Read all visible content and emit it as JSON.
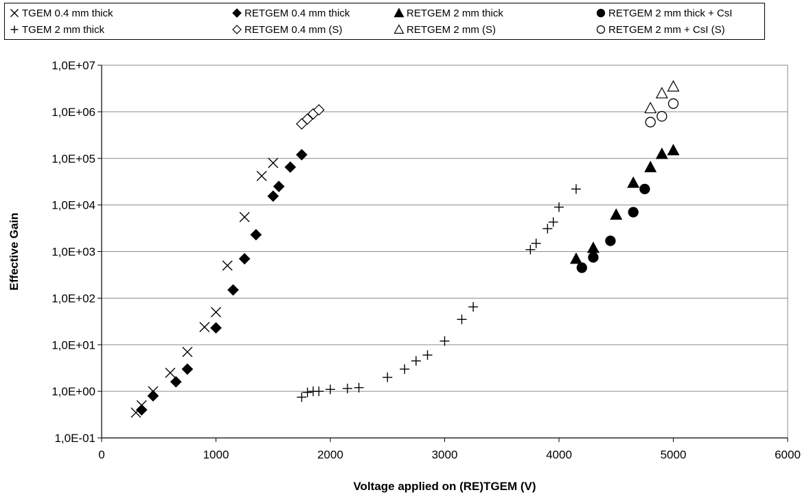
{
  "chart_data": {
    "type": "scatter",
    "title": "",
    "xlabel": "Voltage applied on (RE)TGEM (V)",
    "ylabel": "Effective Gain",
    "x_scale": "linear",
    "y_scale": "log",
    "xlim": [
      0,
      6000
    ],
    "ylim": [
      0.1,
      10000000
    ],
    "x_ticks": [
      "0",
      "1000",
      "2000",
      "3000",
      "4000",
      "5000",
      "6000"
    ],
    "y_ticks": [
      "1,0E-01",
      "1,0E+00",
      "1,0E+01",
      "1,0E+02",
      "1,0E+03",
      "1,0E+04",
      "1,0E+05",
      "1,0E+06",
      "1,0E+07"
    ],
    "grid": "horizontal major lines",
    "legend_position": "top",
    "plot_background": "#ffffff",
    "series": [
      {
        "name": "TGEM 0.4 mm thick",
        "marker": "x",
        "x": [
          300,
          350,
          450,
          600,
          750,
          900,
          1000,
          1100,
          1250,
          1400,
          1500
        ],
        "y": [
          0.35,
          0.5,
          1.0,
          2.5,
          7.0,
          24,
          50,
          500,
          5500,
          42000,
          80000
        ]
      },
      {
        "name": "TGEM 2 mm thick",
        "marker": "plus",
        "x": [
          1750,
          1800,
          1850,
          1900,
          2000,
          2150,
          2250,
          2500,
          2650,
          2750,
          2850,
          3000,
          3150,
          3250,
          3750,
          3800,
          3900,
          3950,
          4000,
          4150
        ],
        "y": [
          0.75,
          0.95,
          1.0,
          1.0,
          1.1,
          1.15,
          1.2,
          2.0,
          3.0,
          4.5,
          6.0,
          12,
          35,
          65,
          1100,
          1500,
          3100,
          4300,
          9000,
          22000
        ]
      },
      {
        "name": "RETGEM 0.4 mm thick",
        "marker": "diamond-filled",
        "x": [
          350,
          450,
          650,
          750,
          1000,
          1150,
          1250,
          1350,
          1500,
          1550,
          1650,
          1750
        ],
        "y": [
          0.4,
          0.8,
          1.6,
          3.0,
          23,
          150,
          700,
          2300,
          15500,
          25000,
          65000,
          120000
        ]
      },
      {
        "name": "RETGEM 0.4 mm (S)",
        "marker": "diamond-open",
        "x": [
          1750,
          1800,
          1850,
          1900
        ],
        "y": [
          550000,
          700000,
          900000,
          1100000
        ]
      },
      {
        "name": "RETGEM 2 mm thick",
        "marker": "triangle-filled",
        "x": [
          4150,
          4300,
          4500,
          4650,
          4800,
          4900,
          5000
        ],
        "y": [
          700,
          1200,
          6200,
          30000,
          65000,
          125000,
          150000
        ]
      },
      {
        "name": "RETGEM 2 mm (S)",
        "marker": "triangle-open",
        "x": [
          4800,
          4900,
          5000
        ],
        "y": [
          1200000,
          2500000,
          3500000
        ]
      },
      {
        "name": "RETGEM 2 mm thick + CsI",
        "marker": "circle-filled",
        "x": [
          4200,
          4300,
          4450,
          4650,
          4750
        ],
        "y": [
          450,
          750,
          1700,
          7000,
          22000
        ]
      },
      {
        "name": "RETGEM 2 mm + CsI (S)",
        "marker": "circle-open",
        "x": [
          4800,
          4900,
          5000
        ],
        "y": [
          600000,
          800000,
          1500000
        ]
      }
    ]
  },
  "legend_rows": [
    [
      "TGEM 0.4 mm thick",
      "RETGEM 0.4 mm thick",
      "RETGEM 2 mm thick",
      "RETGEM 2 mm thick + CsI"
    ],
    [
      "TGEM 2 mm thick",
      "RETGEM 0.4 mm (S)",
      "RETGEM 2 mm (S)",
      "RETGEM 2 mm + CsI (S)"
    ]
  ]
}
